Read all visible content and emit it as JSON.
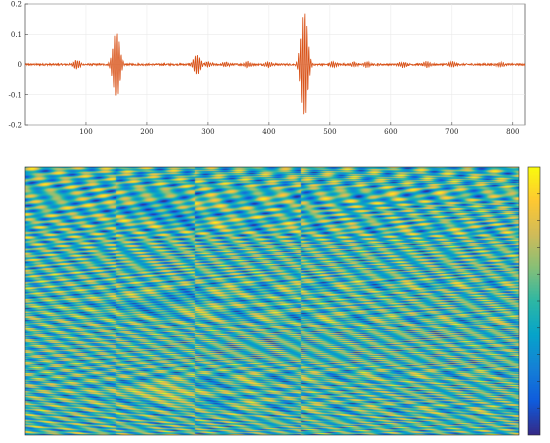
{
  "chart_data": [
    {
      "type": "line",
      "title": "",
      "xlabel": "",
      "ylabel": "",
      "xlim": [
        0,
        820
      ],
      "ylim": [
        -0.2,
        0.2
      ],
      "xticks": [
        100,
        200,
        300,
        400,
        500,
        600,
        700,
        800
      ],
      "yticks": [
        -0.2,
        -0.1,
        0,
        0.1,
        0.2
      ],
      "ytick_labels": [
        "-0.2",
        "-0.1",
        "0",
        "0.1",
        "0.2"
      ],
      "grid": true,
      "series": [
        {
          "color": "#d95319",
          "bursts": [
            {
              "x": 85,
              "amp": 0.015
            },
            {
              "x": 150,
              "amp": 0.11
            },
            {
              "x": 282,
              "amp": 0.035
            },
            {
              "x": 300,
              "amp": 0.01
            },
            {
              "x": 330,
              "amp": 0.008
            },
            {
              "x": 365,
              "amp": 0.01
            },
            {
              "x": 400,
              "amp": 0.01
            },
            {
              "x": 458,
              "amp": 0.18
            },
            {
              "x": 505,
              "amp": 0.01
            },
            {
              "x": 540,
              "amp": 0.008
            },
            {
              "x": 560,
              "amp": 0.01
            },
            {
              "x": 620,
              "amp": 0.01
            },
            {
              "x": 660,
              "amp": 0.01
            },
            {
              "x": 700,
              "amp": 0.01
            },
            {
              "x": 780,
              "amp": 0.008
            }
          ],
          "baseline_noise": 0.003
        }
      ]
    },
    {
      "type": "heatmap",
      "title": "",
      "colormap": "parula",
      "colorbar": true,
      "colormap_stops": [
        "#352a87",
        "#0f5cdd",
        "#1481d6",
        "#06a4ca",
        "#2eb7a4",
        "#87bf77",
        "#d1bb59",
        "#fec832",
        "#f9fb0e"
      ],
      "vertical_breaks_at_signal_x": [
        150,
        282,
        458
      ]
    }
  ]
}
